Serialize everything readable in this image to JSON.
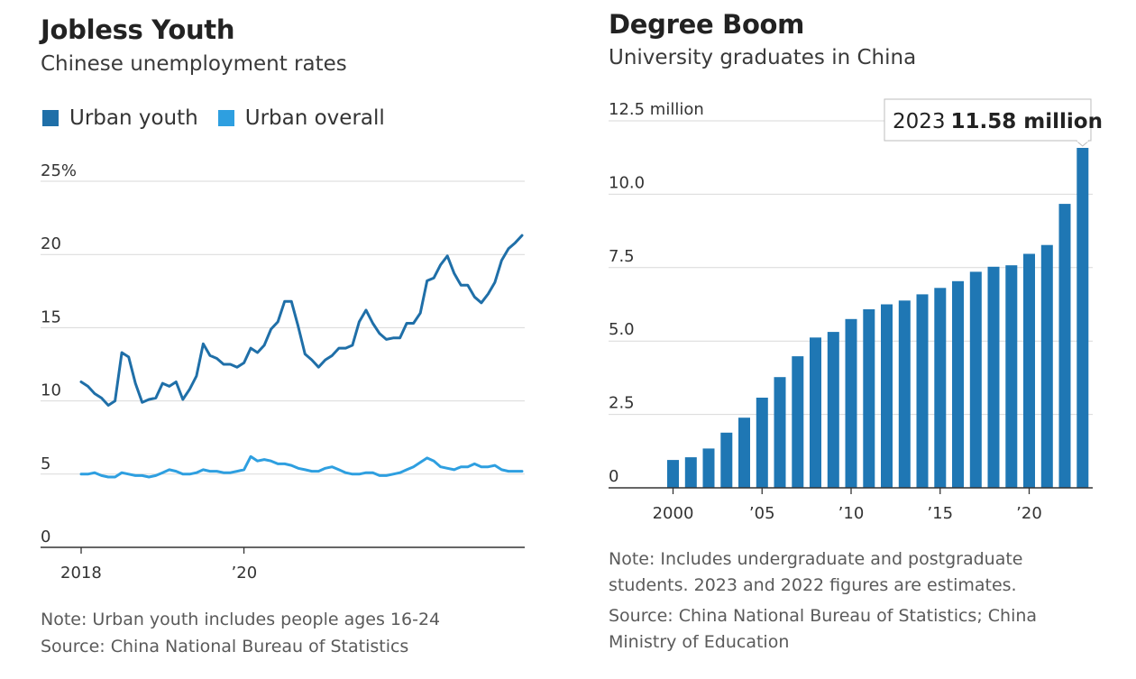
{
  "colors": {
    "urban_youth": "#1f6fa8",
    "urban_overall": "#2e9fe0",
    "bars": "#1f77b4",
    "gridline": "#d9d9d9",
    "axis": "#333333",
    "text": "#333333",
    "note": "#5a5a5a"
  },
  "left": {
    "title": "Jobless Youth",
    "subtitle": "Chinese unemployment rates",
    "legend": [
      {
        "label": "Urban youth"
      },
      {
        "label": "Urban overall"
      }
    ],
    "note": "Note: Urban youth includes people ages 16-24",
    "source": "Source: China National Bureau of Statistics"
  },
  "right": {
    "title": "Degree Boom",
    "subtitle": "University graduates in China",
    "callout_year": "2023",
    "callout_value": "11.58 million",
    "note_line1": "Note: Includes undergraduate and postgraduate",
    "note_line2": "students. 2023 and 2022 figures are estimates.",
    "source_line1": "Source: China National Bureau of Statistics; China",
    "source_line2": "Ministry of Education"
  },
  "chart_data": [
    {
      "type": "line",
      "title": "Jobless Youth",
      "subtitle": "Chinese unemployment rates",
      "ylim": [
        0,
        25
      ],
      "y_ticks": [
        0,
        5,
        10,
        15,
        20,
        25
      ],
      "y_tick_labels": [
        "0",
        "5",
        "10",
        "15",
        "20",
        "25%"
      ],
      "x_ticks": [
        "2018",
        "’20"
      ],
      "legend_position": "top-left",
      "grid": true,
      "x": [
        "2018-01",
        "2018-02",
        "2018-03",
        "2018-04",
        "2018-05",
        "2018-06",
        "2018-07",
        "2018-08",
        "2018-09",
        "2018-10",
        "2018-11",
        "2018-12",
        "2019-01",
        "2019-02",
        "2019-03",
        "2019-04",
        "2019-05",
        "2019-06",
        "2019-07",
        "2019-08",
        "2019-09",
        "2019-10",
        "2019-11",
        "2019-12",
        "2020-01",
        "2020-02",
        "2020-03",
        "2020-04",
        "2020-05",
        "2020-06",
        "2020-07",
        "2020-08",
        "2020-09",
        "2020-10",
        "2020-11",
        "2020-12",
        "2021-01",
        "2021-02",
        "2021-03",
        "2021-04",
        "2021-05",
        "2021-06",
        "2021-07",
        "2021-08",
        "2021-09",
        "2021-10",
        "2021-11",
        "2021-12",
        "2022-01",
        "2022-02",
        "2022-03",
        "2022-04",
        "2022-05",
        "2022-06",
        "2022-07",
        "2022-08",
        "2022-09",
        "2022-10",
        "2022-11",
        "2022-12",
        "2023-01",
        "2023-02",
        "2023-03",
        "2023-04",
        "2023-05",
        "2023-06"
      ],
      "series": [
        {
          "name": "Urban youth",
          "values": [
            11.3,
            11.0,
            10.5,
            10.2,
            9.7,
            10.0,
            13.3,
            13.0,
            11.2,
            9.9,
            10.1,
            10.2,
            11.2,
            11.0,
            11.3,
            10.1,
            10.8,
            11.7,
            13.9,
            13.1,
            12.9,
            12.5,
            12.5,
            12.3,
            12.6,
            13.6,
            13.3,
            13.8,
            14.9,
            15.4,
            16.8,
            16.8,
            15.1,
            13.2,
            12.8,
            12.3,
            12.8,
            13.1,
            13.6,
            13.6,
            13.8,
            15.4,
            16.2,
            15.3,
            14.6,
            14.2,
            14.3,
            14.3,
            15.3,
            15.3,
            16.0,
            18.2,
            18.4,
            19.3,
            19.9,
            18.7,
            17.9,
            17.9,
            17.1,
            16.7,
            17.3,
            18.1,
            19.6,
            20.4,
            20.8,
            21.3
          ]
        },
        {
          "name": "Urban overall",
          "values": [
            5.0,
            5.0,
            5.1,
            4.9,
            4.8,
            4.8,
            5.1,
            5.0,
            4.9,
            4.9,
            4.8,
            4.9,
            5.1,
            5.3,
            5.2,
            5.0,
            5.0,
            5.1,
            5.3,
            5.2,
            5.2,
            5.1,
            5.1,
            5.2,
            5.3,
            6.2,
            5.9,
            6.0,
            5.9,
            5.7,
            5.7,
            5.6,
            5.4,
            5.3,
            5.2,
            5.2,
            5.4,
            5.5,
            5.3,
            5.1,
            5.0,
            5.0,
            5.1,
            5.1,
            4.9,
            4.9,
            5.0,
            5.1,
            5.3,
            5.5,
            5.8,
            6.1,
            5.9,
            5.5,
            5.4,
            5.3,
            5.5,
            5.5,
            5.7,
            5.5,
            5.5,
            5.6,
            5.3,
            5.2,
            5.2,
            5.2
          ]
        }
      ]
    },
    {
      "type": "bar",
      "title": "Degree Boom",
      "subtitle": "University graduates in China",
      "ylim": [
        0,
        12.5
      ],
      "y_ticks": [
        0,
        2.5,
        5.0,
        7.5,
        10.0,
        12.5
      ],
      "y_tick_labels": [
        "0",
        "2.5",
        "5.0",
        "7.5",
        "10.0",
        "12.5 million"
      ],
      "x_tick_labels": [
        "2000",
        "’05",
        "’10",
        "’15",
        "’20"
      ],
      "grid": true,
      "categories": [
        2000,
        2001,
        2002,
        2003,
        2004,
        2005,
        2006,
        2007,
        2008,
        2009,
        2010,
        2011,
        2012,
        2013,
        2014,
        2015,
        2016,
        2017,
        2018,
        2019,
        2020,
        2021,
        2022,
        2023
      ],
      "values": [
        0.95,
        1.04,
        1.34,
        1.88,
        2.39,
        3.07,
        3.77,
        4.48,
        5.12,
        5.31,
        5.75,
        6.08,
        6.25,
        6.38,
        6.59,
        6.81,
        7.04,
        7.36,
        7.53,
        7.58,
        7.97,
        8.27,
        9.67,
        11.58
      ],
      "annotation": "2023 11.58 million"
    }
  ]
}
